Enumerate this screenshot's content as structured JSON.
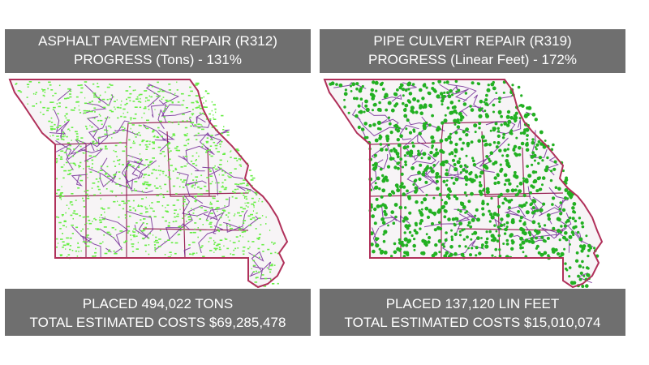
{
  "colors": {
    "banner_bg": "#6f6f6f",
    "banner_text": "#ffffff",
    "state_border": "#b0305a",
    "district_lines": "#9a2a5a",
    "roads": "#6a1f8f",
    "asphalt_marks": "#66ee44",
    "culvert_marks": "#22b022"
  },
  "panels": [
    {
      "title": "ASPHALT PAVEMENT REPAIR (R312)",
      "progress": "PROGRESS (Tons) - 131%",
      "placed": "PLACED 494,022 TONS",
      "cost": "TOTAL ESTIMATED COSTS $69,285,478",
      "map_icon": "missouri-state-map",
      "marker_style": "light-green-points"
    },
    {
      "title": "PIPE CULVERT REPAIR (R319)",
      "progress": "PROGRESS (Linear Feet) - 172%",
      "placed": "PLACED 137,120 LIN FEET",
      "cost": "TOTAL ESTIMATED COSTS $15,010,074",
      "map_icon": "missouri-state-map",
      "marker_style": "dark-green-points"
    }
  ]
}
